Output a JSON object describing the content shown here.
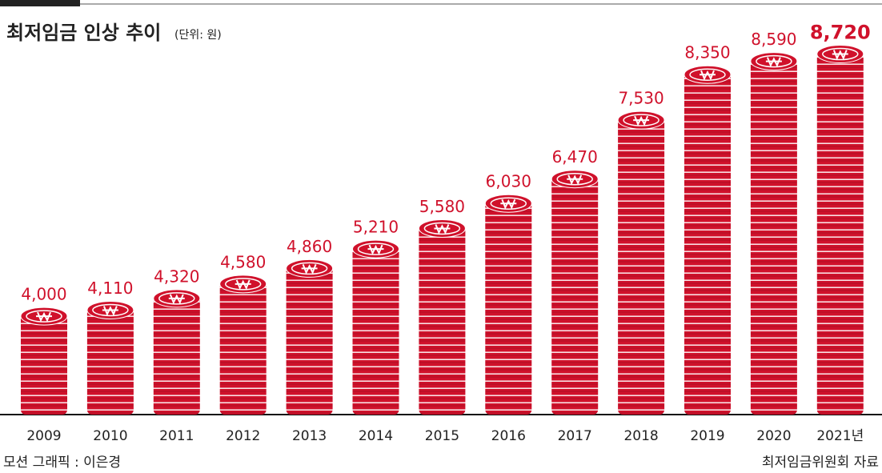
{
  "chart_data": {
    "type": "bar",
    "title": "최저임금 인상 추이",
    "subtitle": "(단위: 원)",
    "categories": [
      "2009",
      "2010",
      "2011",
      "2012",
      "2013",
      "2014",
      "2015",
      "2016",
      "2017",
      "2018",
      "2019",
      "2020",
      "2021년"
    ],
    "values": [
      4000,
      4110,
      4320,
      4580,
      4860,
      5210,
      5580,
      6030,
      6470,
      7530,
      8350,
      8590,
      8720
    ],
    "value_labels": [
      "4,000",
      "4,110",
      "4,320",
      "4,580",
      "4,860",
      "5,210",
      "5,580",
      "6,030",
      "6,470",
      "7,530",
      "8,350",
      "8,590",
      "8,720"
    ],
    "color": "#d0112b",
    "ylim": [
      2200,
      8800
    ],
    "credit": "모션 그래픽 : 이은경",
    "source": "최저임금위원회 자료"
  }
}
